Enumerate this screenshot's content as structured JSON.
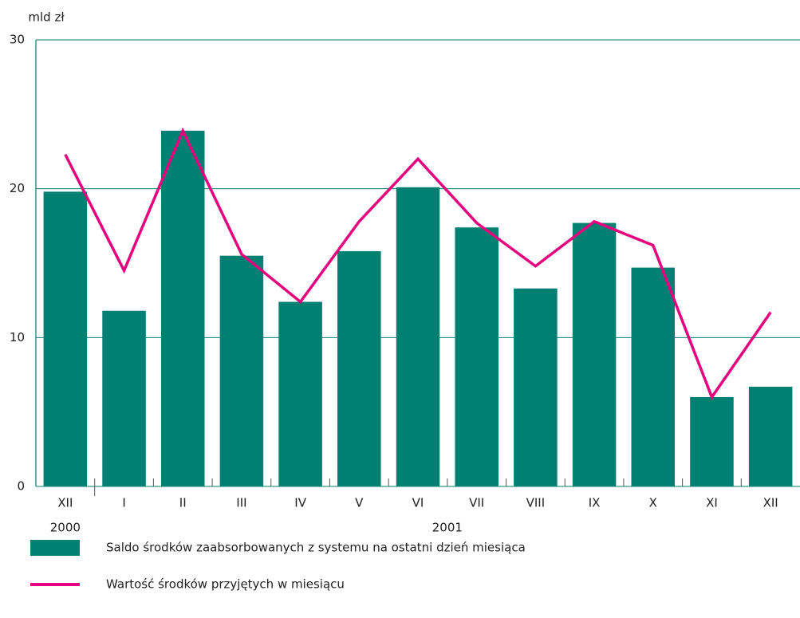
{
  "chart_data": {
    "type": "bar_line",
    "y_axis_label": "mld zł",
    "categories": [
      "XII",
      "I",
      "II",
      "III",
      "IV",
      "V",
      "VI",
      "VII",
      "VIII",
      "IX",
      "X",
      "XI",
      "XII"
    ],
    "year_labels": [
      {
        "label": "2000",
        "from": 0,
        "to": 0
      },
      {
        "label": "2001",
        "from": 1,
        "to": 12
      }
    ],
    "series": [
      {
        "name": "Saldo środków zaabsorbowanych z systemu na ostatni dzień miesiąca",
        "type": "bar",
        "color": "#007f73",
        "values": [
          19.8,
          11.8,
          23.9,
          15.5,
          12.4,
          15.8,
          20.1,
          17.4,
          13.3,
          17.7,
          14.7,
          6.0,
          6.7
        ]
      },
      {
        "name": "Wartość środków przyjętych w miesiącu",
        "type": "line",
        "color": "#e5007e",
        "values": [
          22.3,
          14.5,
          23.9,
          15.6,
          12.4,
          17.8,
          22.0,
          17.7,
          14.8,
          17.8,
          16.2,
          6.0,
          11.7
        ]
      }
    ],
    "ylim": [
      0,
      30
    ],
    "yticks": [
      0,
      10,
      20,
      30
    ],
    "grid": true
  }
}
